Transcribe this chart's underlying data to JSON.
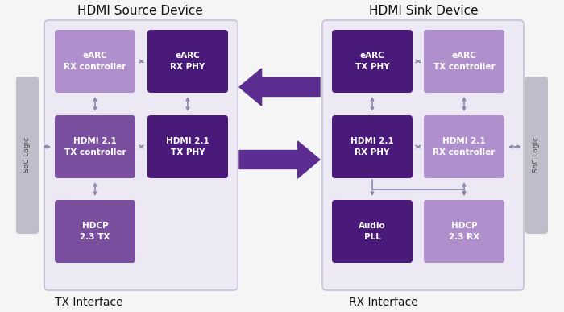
{
  "bg_color": "#f5f5f5",
  "title_left": "HDMI Source Device",
  "title_right": "HDMI Sink Device",
  "label_left": "TX Interface",
  "label_right": "RX Interface",
  "soc_label": "SoC Logic",
  "color_dark_purple": "#4a1a7a",
  "color_mid_purple": "#7b4fa0",
  "color_light_purple": "#b090cc",
  "color_box_bg": "#ece8f4",
  "color_border": "#c8c0d8",
  "color_soc": "#c0bcca",
  "color_arrow_big": "#5c2e91",
  "color_arrow_small": "#8888aa",
  "left_blocks": [
    {
      "label": "eARC\nRX controller",
      "color": "light",
      "col": 0,
      "row": 0
    },
    {
      "label": "eARC\nRX PHY",
      "color": "dark",
      "col": 1,
      "row": 0
    },
    {
      "label": "HDMI 2.1\nTX controller",
      "color": "mid",
      "col": 0,
      "row": 1
    },
    {
      "label": "HDMI 2.1\nTX PHY",
      "color": "dark",
      "col": 1,
      "row": 1
    },
    {
      "label": "HDCP\n2.3 TX",
      "color": "mid",
      "col": 0,
      "row": 2
    }
  ],
  "right_blocks": [
    {
      "label": "eARC\nTX PHY",
      "color": "dark",
      "col": 0,
      "row": 0
    },
    {
      "label": "eARC\nTX controller",
      "color": "light",
      "col": 1,
      "row": 0
    },
    {
      "label": "HDMI 2.1\nRX PHY",
      "color": "dark",
      "col": 0,
      "row": 1
    },
    {
      "label": "HDMI 2.1\nRX controller",
      "color": "light",
      "col": 1,
      "row": 1
    },
    {
      "label": "Audio\nPLL",
      "color": "dark",
      "col": 0,
      "row": 2
    },
    {
      "label": "HDCP\n2.3 RX",
      "color": "light",
      "col": 1,
      "row": 2
    }
  ]
}
